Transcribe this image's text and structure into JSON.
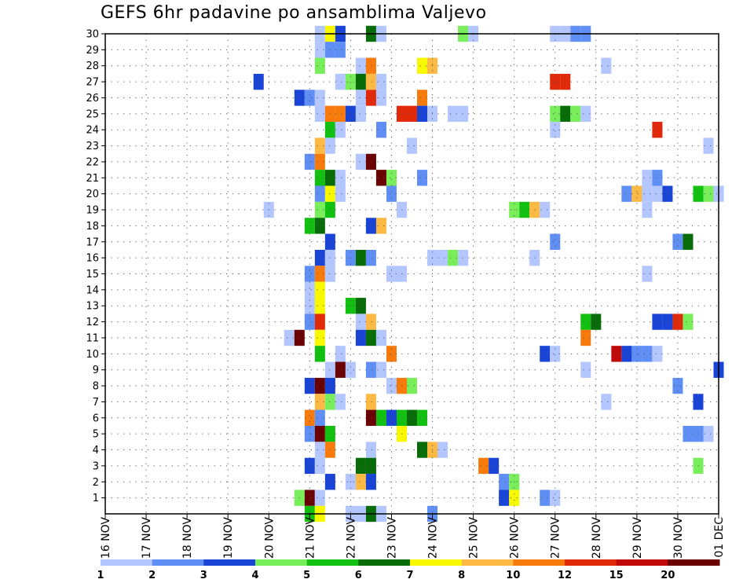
{
  "chart_data": {
    "type": "heatmap",
    "title": "GEFS 6hr padavine po ansamblima Valjevo",
    "xlabel": "",
    "ylabel": "",
    "x_ticks": [
      "16 NOV",
      "17 NOV",
      "18 NOV",
      "19 NOV",
      "20 NOV",
      "21 NOV",
      "22 NOV",
      "23 NOV",
      "24 NOV",
      "25 NOV",
      "26 NOV",
      "27 NOV",
      "28 NOV",
      "29 NOV",
      "30 NOV",
      "01 DEC"
    ],
    "y_ticks": [
      1,
      2,
      3,
      4,
      5,
      6,
      7,
      8,
      9,
      10,
      11,
      12,
      13,
      14,
      15,
      16,
      17,
      18,
      19,
      20,
      21,
      22,
      23,
      24,
      25,
      26,
      27,
      28,
      29,
      30
    ],
    "xlim_days": [
      0,
      15
    ],
    "ylim": [
      0,
      30
    ],
    "step_hours": 6,
    "grid": true,
    "legend_placement": "bottom",
    "colorbar": {
      "labels": [
        "1",
        "2",
        "3",
        "4",
        "5",
        "6",
        "7",
        "8",
        "10",
        "12",
        "15",
        "20"
      ],
      "colors": [
        "#b4c6ff",
        "#5f8ef5",
        "#1a44d6",
        "#78ee5a",
        "#12c012",
        "#086c08",
        "#f8f800",
        "#fcba44",
        "#f67a0c",
        "#e02a0a",
        "#c00a0a",
        "#6a0204"
      ]
    },
    "cells": [
      {
        "m": 30,
        "t": "21 NOV 06",
        "c": 1
      },
      {
        "m": 30,
        "t": "21 NOV 12",
        "c": 7
      },
      {
        "m": 30,
        "t": "21 NOV 18",
        "c": 3
      },
      {
        "m": 30,
        "t": "22 NOV 12",
        "c": 6
      },
      {
        "m": 30,
        "t": "22 NOV 18",
        "c": 1
      },
      {
        "m": 30,
        "t": "24 NOV 18",
        "c": 4
      },
      {
        "m": 30,
        "t": "25 NOV 00",
        "c": 1
      },
      {
        "m": 30,
        "t": "27 NOV 00",
        "c": 1
      },
      {
        "m": 30,
        "t": "27 NOV 06",
        "c": 1
      },
      {
        "m": 30,
        "t": "27 NOV 12",
        "c": 2
      },
      {
        "m": 30,
        "t": "27 NOV 18",
        "c": 2
      },
      {
        "m": 29,
        "t": "21 NOV 06",
        "c": 1
      },
      {
        "m": 29,
        "t": "21 NOV 12",
        "c": 2
      },
      {
        "m": 29,
        "t": "21 NOV 18",
        "c": 2
      },
      {
        "m": 28,
        "t": "21 NOV 06",
        "c": 4
      },
      {
        "m": 28,
        "t": "22 NOV 06",
        "c": 1
      },
      {
        "m": 28,
        "t": "22 NOV 12",
        "c": 9
      },
      {
        "m": 28,
        "t": "23 NOV 18",
        "c": 7
      },
      {
        "m": 28,
        "t": "24 NOV 00",
        "c": 8
      },
      {
        "m": 28,
        "t": "28 NOV 06",
        "c": 1
      },
      {
        "m": 27,
        "t": "19 NOV 18",
        "c": 3
      },
      {
        "m": 27,
        "t": "21 NOV 18",
        "c": 1
      },
      {
        "m": 27,
        "t": "22 NOV 00",
        "c": 4
      },
      {
        "m": 27,
        "t": "22 NOV 06",
        "c": 6
      },
      {
        "m": 27,
        "t": "22 NOV 12",
        "c": 8
      },
      {
        "m": 27,
        "t": "22 NOV 18",
        "c": 1
      },
      {
        "m": 27,
        "t": "27 NOV 00",
        "c": 10
      },
      {
        "m": 27,
        "t": "27 NOV 06",
        "c": 10
      },
      {
        "m": 26,
        "t": "20 NOV 18",
        "c": 3
      },
      {
        "m": 26,
        "t": "21 NOV 00",
        "c": 2
      },
      {
        "m": 26,
        "t": "21 NOV 06",
        "c": 1
      },
      {
        "m": 26,
        "t": "22 NOV 06",
        "c": 1
      },
      {
        "m": 26,
        "t": "22 NOV 12",
        "c": 10
      },
      {
        "m": 26,
        "t": "22 NOV 18",
        "c": 1
      },
      {
        "m": 26,
        "t": "23 NOV 18",
        "c": 9
      },
      {
        "m": 25,
        "t": "21 NOV 06",
        "c": 1
      },
      {
        "m": 25,
        "t": "21 NOV 12",
        "c": 9
      },
      {
        "m": 25,
        "t": "21 NOV 18",
        "c": 9
      },
      {
        "m": 25,
        "t": "22 NOV 00",
        "c": 3
      },
      {
        "m": 25,
        "t": "22 NOV 06",
        "c": 1
      },
      {
        "m": 25,
        "t": "23 NOV 06",
        "c": 10
      },
      {
        "m": 25,
        "t": "23 NOV 12",
        "c": 10
      },
      {
        "m": 25,
        "t": "23 NOV 18",
        "c": 3
      },
      {
        "m": 25,
        "t": "24 NOV 00",
        "c": 1
      },
      {
        "m": 25,
        "t": "24 NOV 12",
        "c": 1
      },
      {
        "m": 25,
        "t": "24 NOV 18",
        "c": 1
      },
      {
        "m": 25,
        "t": "27 NOV 00",
        "c": 4
      },
      {
        "m": 25,
        "t": "27 NOV 06",
        "c": 6
      },
      {
        "m": 25,
        "t": "27 NOV 12",
        "c": 4
      },
      {
        "m": 25,
        "t": "27 NOV 18",
        "c": 1
      },
      {
        "m": 24,
        "t": "21 NOV 12",
        "c": 5
      },
      {
        "m": 24,
        "t": "21 NOV 18",
        "c": 1
      },
      {
        "m": 24,
        "t": "22 NOV 18",
        "c": 2
      },
      {
        "m": 24,
        "t": "27 NOV 00",
        "c": 1
      },
      {
        "m": 24,
        "t": "29 NOV 12",
        "c": 10
      },
      {
        "m": 23,
        "t": "21 NOV 06",
        "c": 8
      },
      {
        "m": 23,
        "t": "21 NOV 12",
        "c": 1
      },
      {
        "m": 23,
        "t": "23 NOV 12",
        "c": 1
      },
      {
        "m": 23,
        "t": "30 NOV 18",
        "c": 1
      },
      {
        "m": 22,
        "t": "21 NOV 00",
        "c": 2
      },
      {
        "m": 22,
        "t": "21 NOV 06",
        "c": 9
      },
      {
        "m": 22,
        "t": "22 NOV 06",
        "c": 1
      },
      {
        "m": 22,
        "t": "22 NOV 12",
        "c": 12
      },
      {
        "m": 21,
        "t": "21 NOV 06",
        "c": 5
      },
      {
        "m": 21,
        "t": "21 NOV 12",
        "c": 6
      },
      {
        "m": 21,
        "t": "21 NOV 18",
        "c": 1
      },
      {
        "m": 21,
        "t": "22 NOV 18",
        "c": 12
      },
      {
        "m": 21,
        "t": "23 NOV 00",
        "c": 4
      },
      {
        "m": 21,
        "t": "23 NOV 18",
        "c": 2
      },
      {
        "m": 21,
        "t": "29 NOV 06",
        "c": 1
      },
      {
        "m": 21,
        "t": "29 NOV 12",
        "c": 2
      },
      {
        "m": 20,
        "t": "21 NOV 06",
        "c": 2
      },
      {
        "m": 20,
        "t": "21 NOV 12",
        "c": 7
      },
      {
        "m": 20,
        "t": "21 NOV 18",
        "c": 1
      },
      {
        "m": 20,
        "t": "23 NOV 00",
        "c": 2
      },
      {
        "m": 20,
        "t": "28 NOV 18",
        "c": 2
      },
      {
        "m": 20,
        "t": "29 NOV 00",
        "c": 8
      },
      {
        "m": 20,
        "t": "29 NOV 06",
        "c": 1
      },
      {
        "m": 20,
        "t": "29 NOV 12",
        "c": 1
      },
      {
        "m": 20,
        "t": "29 NOV 18",
        "c": 3
      },
      {
        "m": 20,
        "t": "30 NOV 12",
        "c": 5
      },
      {
        "m": 20,
        "t": "30 NOV 18",
        "c": 4
      },
      {
        "m": 20,
        "t": "01 DEC 00",
        "c": 1
      },
      {
        "m": 19,
        "t": "20 NOV 00",
        "c": 1
      },
      {
        "m": 19,
        "t": "21 NOV 06",
        "c": 4
      },
      {
        "m": 19,
        "t": "21 NOV 12",
        "c": 5
      },
      {
        "m": 19,
        "t": "23 NOV 06",
        "c": 1
      },
      {
        "m": 19,
        "t": "26 NOV 00",
        "c": 4
      },
      {
        "m": 19,
        "t": "26 NOV 06",
        "c": 5
      },
      {
        "m": 19,
        "t": "26 NOV 12",
        "c": 8
      },
      {
        "m": 19,
        "t": "26 NOV 18",
        "c": 1
      },
      {
        "m": 19,
        "t": "29 NOV 06",
        "c": 1
      },
      {
        "m": 18,
        "t": "21 NOV 00",
        "c": 5
      },
      {
        "m": 18,
        "t": "21 NOV 06",
        "c": 6
      },
      {
        "m": 18,
        "t": "22 NOV 12",
        "c": 3
      },
      {
        "m": 18,
        "t": "22 NOV 18",
        "c": 8
      },
      {
        "m": 17,
        "t": "21 NOV 12",
        "c": 3
      },
      {
        "m": 17,
        "t": "27 NOV 00",
        "c": 2
      },
      {
        "m": 17,
        "t": "30 NOV 00",
        "c": 2
      },
      {
        "m": 17,
        "t": "30 NOV 06",
        "c": 6
      },
      {
        "m": 16,
        "t": "21 NOV 06",
        "c": 3
      },
      {
        "m": 16,
        "t": "21 NOV 12",
        "c": 1
      },
      {
        "m": 16,
        "t": "22 NOV 00",
        "c": 2
      },
      {
        "m": 16,
        "t": "22 NOV 06",
        "c": 6
      },
      {
        "m": 16,
        "t": "22 NOV 12",
        "c": 2
      },
      {
        "m": 16,
        "t": "24 NOV 00",
        "c": 1
      },
      {
        "m": 16,
        "t": "24 NOV 06",
        "c": 1
      },
      {
        "m": 16,
        "t": "24 NOV 12",
        "c": 4
      },
      {
        "m": 16,
        "t": "24 NOV 18",
        "c": 1
      },
      {
        "m": 16,
        "t": "26 NOV 12",
        "c": 1
      },
      {
        "m": 15,
        "t": "21 NOV 00",
        "c": 2
      },
      {
        "m": 15,
        "t": "21 NOV 06",
        "c": 9
      },
      {
        "m": 15,
        "t": "21 NOV 12",
        "c": 1
      },
      {
        "m": 15,
        "t": "23 NOV 00",
        "c": 1
      },
      {
        "m": 15,
        "t": "23 NOV 06",
        "c": 1
      },
      {
        "m": 15,
        "t": "29 NOV 06",
        "c": 1
      },
      {
        "m": 14,
        "t": "21 NOV 00",
        "c": 1
      },
      {
        "m": 14,
        "t": "21 NOV 06",
        "c": 7
      },
      {
        "m": 13,
        "t": "21 NOV 00",
        "c": 1
      },
      {
        "m": 13,
        "t": "21 NOV 06",
        "c": 7
      },
      {
        "m": 13,
        "t": "22 NOV 00",
        "c": 5
      },
      {
        "m": 13,
        "t": "22 NOV 06",
        "c": 6
      },
      {
        "m": 12,
        "t": "21 NOV 00",
        "c": 2
      },
      {
        "m": 12,
        "t": "21 NOV 06",
        "c": 10
      },
      {
        "m": 12,
        "t": "22 NOV 06",
        "c": 1
      },
      {
        "m": 12,
        "t": "22 NOV 12",
        "c": 8
      },
      {
        "m": 12,
        "t": "27 NOV 18",
        "c": 5
      },
      {
        "m": 12,
        "t": "28 NOV 00",
        "c": 6
      },
      {
        "m": 12,
        "t": "29 NOV 12",
        "c": 3
      },
      {
        "m": 12,
        "t": "29 NOV 18",
        "c": 3
      },
      {
        "m": 12,
        "t": "30 NOV 00",
        "c": 10
      },
      {
        "m": 12,
        "t": "30 NOV 06",
        "c": 4
      },
      {
        "m": 11,
        "t": "20 NOV 12",
        "c": 1
      },
      {
        "m": 11,
        "t": "20 NOV 18",
        "c": 12
      },
      {
        "m": 11,
        "t": "21 NOV 06",
        "c": 7
      },
      {
        "m": 11,
        "t": "22 NOV 06",
        "c": 3
      },
      {
        "m": 11,
        "t": "22 NOV 12",
        "c": 6
      },
      {
        "m": 11,
        "t": "22 NOV 18",
        "c": 1
      },
      {
        "m": 11,
        "t": "27 NOV 18",
        "c": 9
      },
      {
        "m": 10,
        "t": "21 NOV 06",
        "c": 5
      },
      {
        "m": 10,
        "t": "21 NOV 18",
        "c": 1
      },
      {
        "m": 10,
        "t": "23 NOV 00",
        "c": 9
      },
      {
        "m": 10,
        "t": "26 NOV 18",
        "c": 3
      },
      {
        "m": 10,
        "t": "27 NOV 00",
        "c": 1
      },
      {
        "m": 10,
        "t": "28 NOV 12",
        "c": 11
      },
      {
        "m": 10,
        "t": "28 NOV 18",
        "c": 3
      },
      {
        "m": 10,
        "t": "29 NOV 00",
        "c": 2
      },
      {
        "m": 10,
        "t": "29 NOV 06",
        "c": 2
      },
      {
        "m": 10,
        "t": "29 NOV 12",
        "c": 1
      },
      {
        "m": 9,
        "t": "21 NOV 12",
        "c": 1
      },
      {
        "m": 9,
        "t": "21 NOV 18",
        "c": 12
      },
      {
        "m": 9,
        "t": "22 NOV 00",
        "c": 1
      },
      {
        "m": 9,
        "t": "22 NOV 12",
        "c": 2
      },
      {
        "m": 9,
        "t": "22 NOV 18",
        "c": 1
      },
      {
        "m": 9,
        "t": "27 NOV 18",
        "c": 1
      },
      {
        "m": 9,
        "t": "01 DEC 00",
        "c": 3
      },
      {
        "m": 8,
        "t": "21 NOV 00",
        "c": 3
      },
      {
        "m": 8,
        "t": "21 NOV 06",
        "c": 12
      },
      {
        "m": 8,
        "t": "21 NOV 12",
        "c": 3
      },
      {
        "m": 8,
        "t": "23 NOV 00",
        "c": 1
      },
      {
        "m": 8,
        "t": "23 NOV 06",
        "c": 9
      },
      {
        "m": 8,
        "t": "23 NOV 12",
        "c": 4
      },
      {
        "m": 8,
        "t": "30 NOV 00",
        "c": 2
      },
      {
        "m": 7,
        "t": "21 NOV 06",
        "c": 8
      },
      {
        "m": 7,
        "t": "21 NOV 12",
        "c": 4
      },
      {
        "m": 7,
        "t": "21 NOV 18",
        "c": 1
      },
      {
        "m": 7,
        "t": "22 NOV 12",
        "c": 8
      },
      {
        "m": 7,
        "t": "28 NOV 06",
        "c": 1
      },
      {
        "m": 7,
        "t": "30 NOV 12",
        "c": 3
      },
      {
        "m": 6,
        "t": "21 NOV 00",
        "c": 9
      },
      {
        "m": 6,
        "t": "21 NOV 06",
        "c": 2
      },
      {
        "m": 6,
        "t": "22 NOV 12",
        "c": 12
      },
      {
        "m": 6,
        "t": "22 NOV 18",
        "c": 5
      },
      {
        "m": 6,
        "t": "23 NOV 00",
        "c": 3
      },
      {
        "m": 6,
        "t": "23 NOV 06",
        "c": 5
      },
      {
        "m": 6,
        "t": "23 NOV 12",
        "c": 6
      },
      {
        "m": 6,
        "t": "23 NOV 18",
        "c": 5
      },
      {
        "m": 5,
        "t": "21 NOV 00",
        "c": 2
      },
      {
        "m": 5,
        "t": "21 NOV 06",
        "c": 12
      },
      {
        "m": 5,
        "t": "21 NOV 12",
        "c": 5
      },
      {
        "m": 5,
        "t": "23 NOV 06",
        "c": 7
      },
      {
        "m": 5,
        "t": "30 NOV 06",
        "c": 2
      },
      {
        "m": 5,
        "t": "30 NOV 12",
        "c": 2
      },
      {
        "m": 5,
        "t": "30 NOV 18",
        "c": 1
      },
      {
        "m": 4,
        "t": "21 NOV 06",
        "c": 1
      },
      {
        "m": 4,
        "t": "21 NOV 12",
        "c": 9
      },
      {
        "m": 4,
        "t": "22 NOV 12",
        "c": 1
      },
      {
        "m": 4,
        "t": "23 NOV 18",
        "c": 6
      },
      {
        "m": 4,
        "t": "24 NOV 00",
        "c": 8
      },
      {
        "m": 4,
        "t": "24 NOV 06",
        "c": 1
      },
      {
        "m": 3,
        "t": "21 NOV 00",
        "c": 3
      },
      {
        "m": 3,
        "t": "21 NOV 06",
        "c": 1
      },
      {
        "m": 3,
        "t": "22 NOV 06",
        "c": 6
      },
      {
        "m": 3,
        "t": "22 NOV 12",
        "c": 6
      },
      {
        "m": 3,
        "t": "25 NOV 06",
        "c": 9
      },
      {
        "m": 3,
        "t": "25 NOV 12",
        "c": 3
      },
      {
        "m": 3,
        "t": "30 NOV 12",
        "c": 4
      },
      {
        "m": 2,
        "t": "21 NOV 12",
        "c": 3
      },
      {
        "m": 2,
        "t": "22 NOV 00",
        "c": 1
      },
      {
        "m": 2,
        "t": "22 NOV 06",
        "c": 8
      },
      {
        "m": 2,
        "t": "22 NOV 12",
        "c": 3
      },
      {
        "m": 2,
        "t": "25 NOV 18",
        "c": 2
      },
      {
        "m": 2,
        "t": "26 NOV 00",
        "c": 4
      },
      {
        "m": 1,
        "t": "20 NOV 18",
        "c": 4
      },
      {
        "m": 1,
        "t": "21 NOV 00",
        "c": 12
      },
      {
        "m": 1,
        "t": "21 NOV 06",
        "c": 1
      },
      {
        "m": 1,
        "t": "25 NOV 18",
        "c": 3
      },
      {
        "m": 1,
        "t": "26 NOV 00",
        "c": 7
      },
      {
        "m": 1,
        "t": "26 NOV 18",
        "c": 2
      },
      {
        "m": 1,
        "t": "27 NOV 00",
        "c": 1
      },
      {
        "m": 0,
        "t": "21 NOV 00",
        "c": 5
      },
      {
        "m": 0,
        "t": "21 NOV 06",
        "c": 7
      },
      {
        "m": 0,
        "t": "22 NOV 00",
        "c": 1
      },
      {
        "m": 0,
        "t": "22 NOV 06",
        "c": 1
      },
      {
        "m": 0,
        "t": "22 NOV 12",
        "c": 6
      },
      {
        "m": 0,
        "t": "22 NOV 18",
        "c": 1
      },
      {
        "m": 0,
        "t": "24 NOV 00",
        "c": 2
      }
    ]
  }
}
